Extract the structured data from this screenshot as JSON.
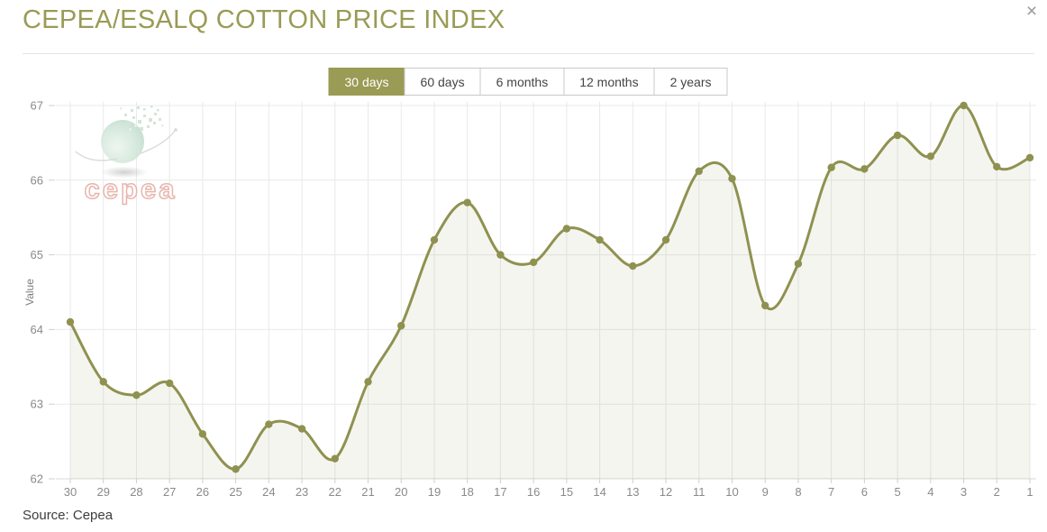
{
  "header": {
    "title": "CEPEA/ESALQ COTTON PRICE INDEX",
    "close_icon": "×"
  },
  "range_buttons": [
    {
      "label": "30 days",
      "active": true
    },
    {
      "label": "60 days",
      "active": false
    },
    {
      "label": "6 months",
      "active": false
    },
    {
      "label": "12 months",
      "active": false
    },
    {
      "label": "2 years",
      "active": false
    }
  ],
  "watermark": {
    "text": "cepea"
  },
  "chart_data": {
    "type": "area",
    "title": "",
    "xlabel": "",
    "ylabel": "Value",
    "categories": [
      "30",
      "29",
      "28",
      "27",
      "26",
      "25",
      "24",
      "23",
      "22",
      "21",
      "20",
      "19",
      "18",
      "17",
      "16",
      "15",
      "14",
      "13",
      "12",
      "11",
      "10",
      "9",
      "8",
      "7",
      "6",
      "5",
      "4",
      "3",
      "2",
      "1"
    ],
    "values": [
      64.1,
      63.3,
      63.12,
      63.28,
      62.6,
      62.13,
      62.73,
      62.67,
      62.27,
      63.3,
      64.05,
      65.2,
      65.7,
      65.0,
      64.9,
      65.35,
      65.2,
      64.85,
      65.2,
      66.12,
      66.02,
      64.32,
      64.88,
      66.17,
      66.15,
      66.6,
      66.32,
      67.0,
      66.18,
      66.3
    ],
    "ylim": [
      62,
      67
    ],
    "yticks": [
      62,
      63,
      64,
      65,
      66,
      67
    ],
    "grid": true,
    "legend": "none",
    "line_color": "#8f9150",
    "marker_color": "#8f9150",
    "fill_color": "rgba(143,145,80,0.09)",
    "axis_text_color": "#8a8a8a",
    "grid_color": "#e9e9e9",
    "tick_color": "#cfcfcf",
    "axis_line_color": "#d8d8d8"
  },
  "footer": {
    "source": "Source: Cepea"
  }
}
